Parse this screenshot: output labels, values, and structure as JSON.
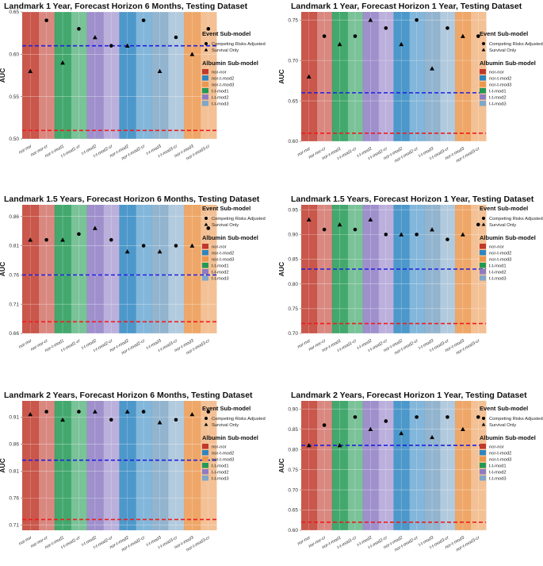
{
  "categories": [
    "nor-nor",
    "nor-nor-cr",
    "nor-t-mod1",
    "t-t-mod1-cr",
    "t-t-mod2",
    "t-t-mod2-cr",
    "nor-t-mod2",
    "nor-t-mod2-cr",
    "t-t-mod3",
    "t-t-mod3-cr",
    "nor-t-mod3",
    "nor-t-mod3-cr"
  ],
  "legend": {
    "event_title": "Event Sub-model",
    "event_items": [
      "Competing Risks Adjusted",
      "Survival Only"
    ],
    "albumin_title": "Albumin Sub-model",
    "albumin_items": [
      {
        "label": "nor-nor",
        "color": "#c0392b"
      },
      {
        "label": "nor-t-mod2",
        "color": "#2e86c1"
      },
      {
        "label": "nor-t-mod3",
        "color": "#eb984e"
      },
      {
        "label": "t-t-mod1",
        "color": "#229954"
      },
      {
        "label": "t-t-mod2",
        "color": "#8e7cc3"
      },
      {
        "label": "t-t-mod3",
        "color": "#7fa7c7"
      }
    ]
  },
  "ylabel": "AUC",
  "chart_data": [
    {
      "type": "scatter",
      "title": "Landmark 1 Year, Forecast Horizon 6 Months, Testing Dataset",
      "ylim": [
        0.5,
        0.65
      ],
      "yticks": [
        0.5,
        0.55,
        0.6,
        0.65
      ],
      "tick_labels": [
        "0.50",
        "0.55",
        "0.60",
        "0.65"
      ],
      "values": [
        0.58,
        0.64,
        0.59,
        0.63,
        0.62,
        0.61,
        0.61,
        0.64,
        0.58,
        0.62,
        0.6,
        0.63
      ],
      "markers": [
        "triangle",
        "circle",
        "triangle",
        "circle",
        "triangle",
        "circle",
        "triangle",
        "circle",
        "triangle",
        "circle",
        "triangle",
        "circle"
      ],
      "ref_blue": 0.61,
      "ref_red": 0.51
    },
    {
      "type": "scatter",
      "title": "Landmark 1 Year, Forecast Horizon 1 Year, Testing Dataset",
      "ylim": [
        0.6,
        0.76
      ],
      "yticks": [
        0.6,
        0.65,
        0.7,
        0.75
      ],
      "tick_labels": [
        "0.60",
        "0.65",
        "0.70",
        "0.75"
      ],
      "values": [
        0.68,
        0.73,
        0.72,
        0.73,
        0.75,
        0.74,
        0.72,
        0.75,
        0.69,
        0.74,
        0.73,
        0.73
      ],
      "markers": [
        "triangle",
        "circle",
        "triangle",
        "circle",
        "triangle",
        "circle",
        "triangle",
        "circle",
        "triangle",
        "circle",
        "triangle",
        "circle"
      ],
      "ref_blue": 0.66,
      "ref_red": 0.61
    },
    {
      "type": "scatter",
      "title": "Landmark 1.5 Years, Forecast Horizon 6 Months, Testing Dataset",
      "ylim": [
        0.66,
        0.88
      ],
      "yticks": [
        0.66,
        0.71,
        0.76,
        0.81,
        0.86
      ],
      "tick_labels": [
        "0.66",
        "0.71",
        "0.76",
        "0.81",
        "0.86"
      ],
      "values": [
        0.82,
        0.82,
        0.82,
        0.83,
        0.84,
        0.82,
        0.8,
        0.81,
        0.8,
        0.81,
        0.81,
        0.84
      ],
      "markers": [
        "triangle",
        "circle",
        "triangle",
        "circle",
        "triangle",
        "circle",
        "triangle",
        "circle",
        "triangle",
        "circle",
        "triangle",
        "circle"
      ],
      "ref_blue": 0.76,
      "ref_red": 0.68
    },
    {
      "type": "scatter",
      "title": "Landmark 1.5 Years, Forecast Horizon 1 Year, Testing Dataset",
      "ylim": [
        0.7,
        0.96
      ],
      "yticks": [
        0.7,
        0.75,
        0.8,
        0.85,
        0.9,
        0.95
      ],
      "tick_labels": [
        "0.70",
        "0.75",
        "0.80",
        "0.85",
        "0.90",
        "0.95"
      ],
      "values": [
        0.93,
        0.91,
        0.92,
        0.91,
        0.93,
        0.9,
        0.9,
        0.9,
        0.91,
        0.89,
        0.9,
        0.92
      ],
      "markers": [
        "triangle",
        "circle",
        "triangle",
        "circle",
        "triangle",
        "circle",
        "triangle",
        "circle",
        "triangle",
        "circle",
        "triangle",
        "circle"
      ],
      "ref_blue": 0.83,
      "ref_red": 0.72
    },
    {
      "type": "scatter",
      "title": "Landmark 2 Years, Forecast Horizon 6 Months, Testing Dataset",
      "ylim": [
        0.7,
        0.94
      ],
      "yticks": [
        0.71,
        0.76,
        0.81,
        0.86,
        0.91
      ],
      "tick_labels": [
        "0.71",
        "0.76",
        "0.81",
        "0.86",
        "0.91"
      ],
      "values": [
        0.915,
        0.92,
        0.905,
        0.92,
        0.92,
        0.905,
        0.92,
        0.92,
        0.9,
        0.905,
        0.915,
        0.92
      ],
      "markers": [
        "triangle",
        "circle",
        "triangle",
        "circle",
        "triangle",
        "circle",
        "triangle",
        "circle",
        "triangle",
        "circle",
        "triangle",
        "circle"
      ],
      "ref_blue": 0.83,
      "ref_red": 0.72
    },
    {
      "type": "scatter",
      "title": "Landmark 2 Years, Forecast Horizon 1 Year, Testing Dataset",
      "ylim": [
        0.6,
        0.92
      ],
      "yticks": [
        0.6,
        0.65,
        0.7,
        0.75,
        0.8,
        0.85,
        0.9
      ],
      "tick_labels": [
        "0.60",
        "0.65",
        "0.70",
        "0.75",
        "0.80",
        "0.85",
        "0.90"
      ],
      "values": [
        0.81,
        0.86,
        0.81,
        0.88,
        0.85,
        0.87,
        0.84,
        0.88,
        0.83,
        0.88,
        0.85,
        0.88
      ],
      "markers": [
        "triangle",
        "circle",
        "triangle",
        "circle",
        "triangle",
        "circle",
        "triangle",
        "circle",
        "triangle",
        "circle",
        "triangle",
        "circle"
      ],
      "ref_blue": 0.81,
      "ref_red": 0.62
    }
  ]
}
